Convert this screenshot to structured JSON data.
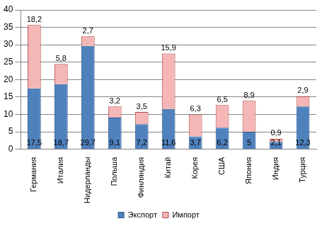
{
  "chart_data": {
    "type": "bar",
    "categories": [
      "Германия",
      "Италия",
      "Нидерланды",
      "Польша",
      "Финляндия",
      "Китай",
      "Корея",
      "США",
      "Япония",
      "Индия",
      "Турция"
    ],
    "series": [
      {
        "name": "Экспорт",
        "color": "#4f81bd",
        "values": [
          17.5,
          18.7,
          29.7,
          9.1,
          7.2,
          11.6,
          3.7,
          6.2,
          5,
          2.1,
          12.3
        ],
        "value_labels": [
          "17,5",
          "18,7",
          "29,7",
          "9,1",
          "7,2",
          "11,6",
          "3,7",
          "6,2",
          "5",
          "2,1",
          "12,3"
        ]
      },
      {
        "name": "Импорт",
        "color": "#f4b6b6",
        "values": [
          18.2,
          5.8,
          2.7,
          3.2,
          3.5,
          15.9,
          6.3,
          6.5,
          8.9,
          0.9,
          2.9
        ],
        "value_labels": [
          "18,2",
          "5,8",
          "2,7",
          "3,2",
          "3,5",
          "15,9",
          "6,3",
          "6,5",
          "8,9",
          "0,9",
          "2,9"
        ]
      }
    ],
    "ylim": [
      0,
      40
    ],
    "yticks": [
      0,
      5,
      10,
      15,
      20,
      25,
      30,
      35,
      40
    ],
    "stacked": true,
    "grid": true,
    "legend": "bottom",
    "data_labels": true
  }
}
